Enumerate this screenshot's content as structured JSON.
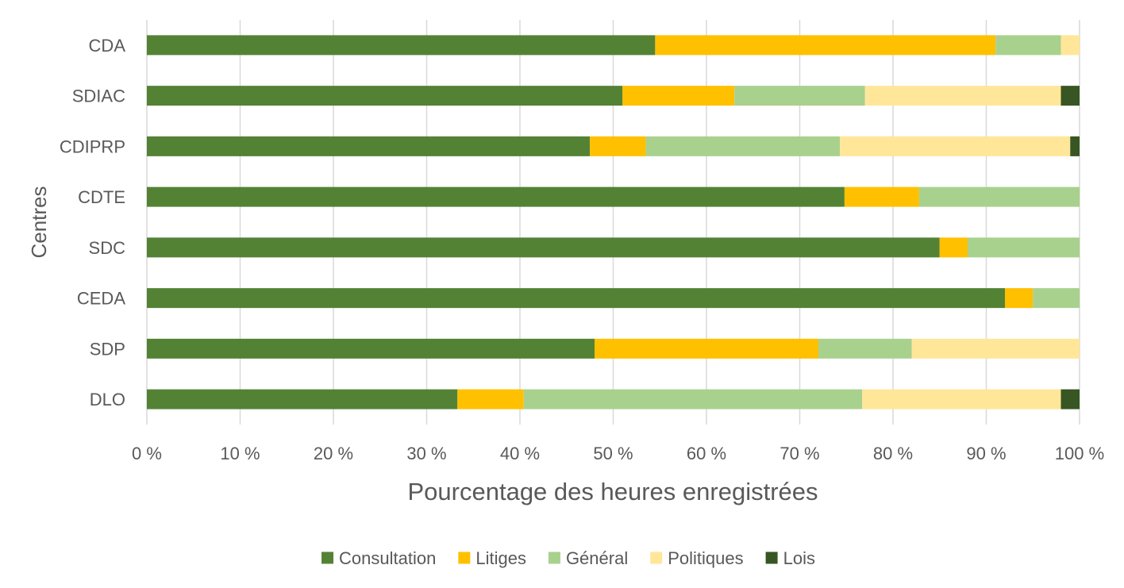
{
  "chart_data": {
    "type": "bar",
    "orientation": "horizontal",
    "stacked": "percent",
    "title": "",
    "xlabel": "Pourcentage des heures enregistrées",
    "ylabel": "Centres",
    "xlim": [
      0,
      100
    ],
    "xticks": [
      "0 %",
      "10 %",
      "20 %",
      "30 %",
      "40 %",
      "50 %",
      "60 %",
      "70 %",
      "80 %",
      "90 %",
      "100 %"
    ],
    "grid": "vertical",
    "legend_position": "bottom",
    "categories": [
      "CDA",
      "SDIAC",
      "CDIPRP",
      "CDTE",
      "SDC",
      "CEDA",
      "SDP",
      "DLO"
    ],
    "series": [
      {
        "name": "Consultation",
        "color": "#548235",
        "values": [
          54.5,
          51,
          47.5,
          74.8,
          85,
          92,
          48,
          33.3
        ]
      },
      {
        "name": "Litiges",
        "color": "#FFC000",
        "values": [
          36.5,
          12,
          6,
          8,
          3,
          3,
          24,
          7.1
        ]
      },
      {
        "name": "Général",
        "color": "#A9D18E",
        "values": [
          7,
          14,
          20.8,
          17.2,
          12,
          5,
          10,
          36.3
        ]
      },
      {
        "name": "Politiques",
        "color": "#FFE699",
        "values": [
          2,
          21,
          24.7,
          0,
          0,
          0,
          18,
          21.3
        ]
      },
      {
        "name": "Lois",
        "color": "#375623",
        "values": [
          0,
          2,
          1,
          0,
          0,
          0,
          0,
          2
        ]
      }
    ]
  }
}
